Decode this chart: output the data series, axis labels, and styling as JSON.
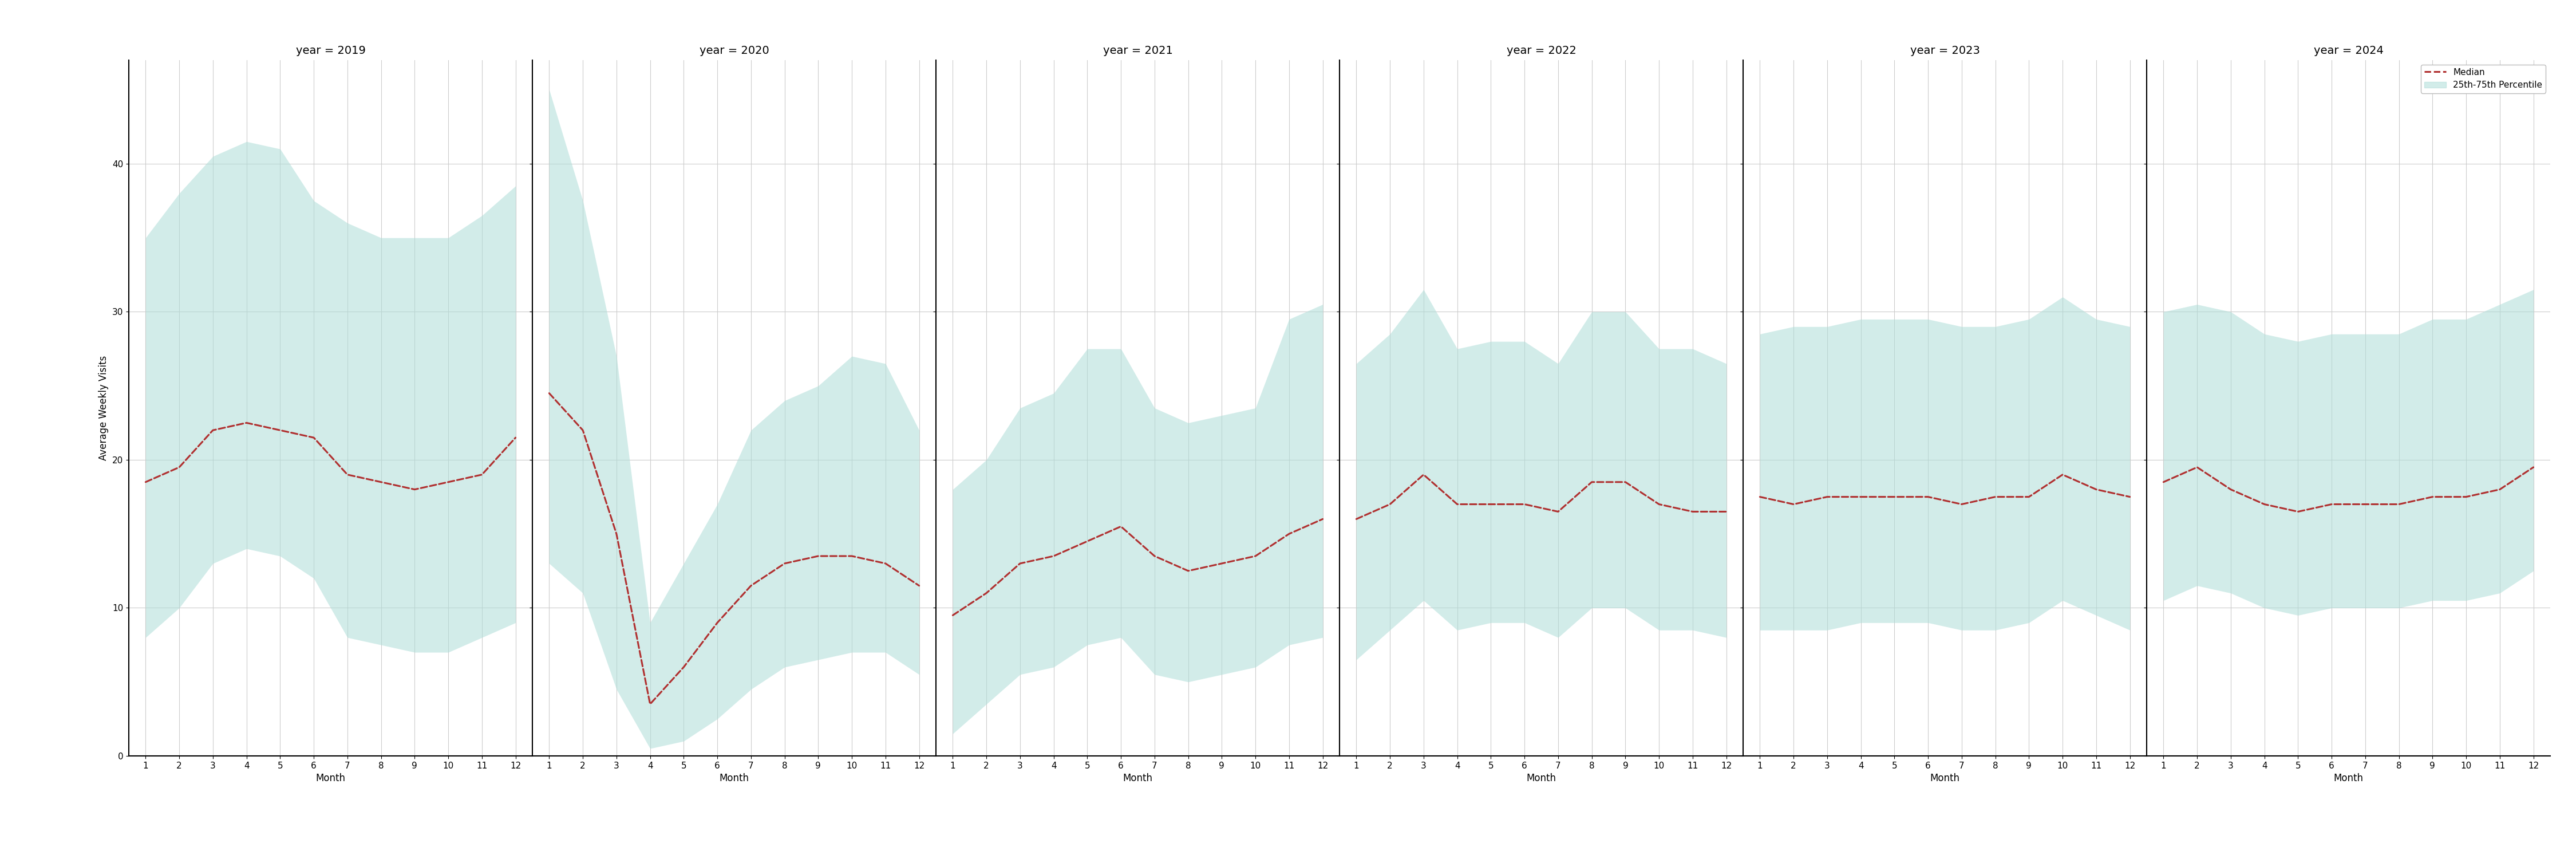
{
  "years": [
    2019,
    2020,
    2021,
    2022,
    2023,
    2024
  ],
  "months": [
    1,
    2,
    3,
    4,
    5,
    6,
    7,
    8,
    9,
    10,
    11,
    12
  ],
  "median": {
    "2019": [
      18.5,
      19.5,
      22.0,
      22.5,
      22.0,
      21.5,
      19.0,
      18.5,
      18.0,
      18.5,
      19.0,
      21.5
    ],
    "2020": [
      24.5,
      22.0,
      15.0,
      3.5,
      6.0,
      9.0,
      11.5,
      13.0,
      13.5,
      13.5,
      13.0,
      11.5
    ],
    "2021": [
      9.5,
      11.0,
      13.0,
      13.5,
      14.5,
      15.5,
      13.5,
      12.5,
      13.0,
      13.5,
      15.0,
      16.0
    ],
    "2022": [
      16.0,
      17.0,
      19.0,
      17.0,
      17.0,
      17.0,
      16.5,
      18.5,
      18.5,
      17.0,
      16.5,
      16.5
    ],
    "2023": [
      17.5,
      17.0,
      17.5,
      17.5,
      17.5,
      17.5,
      17.0,
      17.5,
      17.5,
      19.0,
      18.0,
      17.5
    ],
    "2024": [
      18.5,
      19.5,
      18.0,
      17.0,
      16.5,
      17.0,
      17.0,
      17.0,
      17.5,
      17.5,
      18.0,
      19.5
    ]
  },
  "p25": {
    "2019": [
      8.0,
      10.0,
      13.0,
      14.0,
      13.5,
      12.0,
      8.0,
      7.5,
      7.0,
      7.0,
      8.0,
      9.0
    ],
    "2020": [
      13.0,
      11.0,
      4.5,
      0.5,
      1.0,
      2.5,
      4.5,
      6.0,
      6.5,
      7.0,
      7.0,
      5.5
    ],
    "2021": [
      1.5,
      3.5,
      5.5,
      6.0,
      7.5,
      8.0,
      5.5,
      5.0,
      5.5,
      6.0,
      7.5,
      8.0
    ],
    "2022": [
      6.5,
      8.5,
      10.5,
      8.5,
      9.0,
      9.0,
      8.0,
      10.0,
      10.0,
      8.5,
      8.5,
      8.0
    ],
    "2023": [
      8.5,
      8.5,
      8.5,
      9.0,
      9.0,
      9.0,
      8.5,
      8.5,
      9.0,
      10.5,
      9.5,
      8.5
    ],
    "2024": [
      10.5,
      11.5,
      11.0,
      10.0,
      9.5,
      10.0,
      10.0,
      10.0,
      10.5,
      10.5,
      11.0,
      12.5
    ]
  },
  "p75": {
    "2019": [
      35.0,
      38.0,
      40.5,
      41.5,
      41.0,
      37.5,
      36.0,
      35.0,
      35.0,
      35.0,
      36.5,
      38.5
    ],
    "2020": [
      45.0,
      37.5,
      27.0,
      9.0,
      13.0,
      17.0,
      22.0,
      24.0,
      25.0,
      27.0,
      26.5,
      22.0
    ],
    "2021": [
      18.0,
      20.0,
      23.5,
      24.5,
      27.5,
      27.5,
      23.5,
      22.5,
      23.0,
      23.5,
      29.5,
      30.5
    ],
    "2022": [
      26.5,
      28.5,
      31.5,
      27.5,
      28.0,
      28.0,
      26.5,
      30.0,
      30.0,
      27.5,
      27.5,
      26.5
    ],
    "2023": [
      28.5,
      29.0,
      29.0,
      29.5,
      29.5,
      29.5,
      29.0,
      29.0,
      29.5,
      31.0,
      29.5,
      29.0
    ],
    "2024": [
      30.0,
      30.5,
      30.0,
      28.5,
      28.0,
      28.5,
      28.5,
      28.5,
      29.5,
      29.5,
      30.5,
      31.5
    ]
  },
  "ylim": [
    0,
    47
  ],
  "yticks": [
    0,
    10,
    20,
    30,
    40
  ],
  "xticks": [
    1,
    2,
    3,
    4,
    5,
    6,
    7,
    8,
    9,
    10,
    11,
    12
  ],
  "xlabel": "Month",
  "ylabel": "Average Weekly Visits",
  "fill_color": "#aeddd8",
  "fill_alpha": 0.55,
  "line_color": "#b03030",
  "line_width": 2.2,
  "line_style": "--",
  "background_color": "#ffffff",
  "grid_color": "#cccccc",
  "legend_labels": [
    "Median",
    "25th-75th Percentile"
  ],
  "title_fontsize": 14,
  "label_fontsize": 12,
  "tick_fontsize": 11
}
